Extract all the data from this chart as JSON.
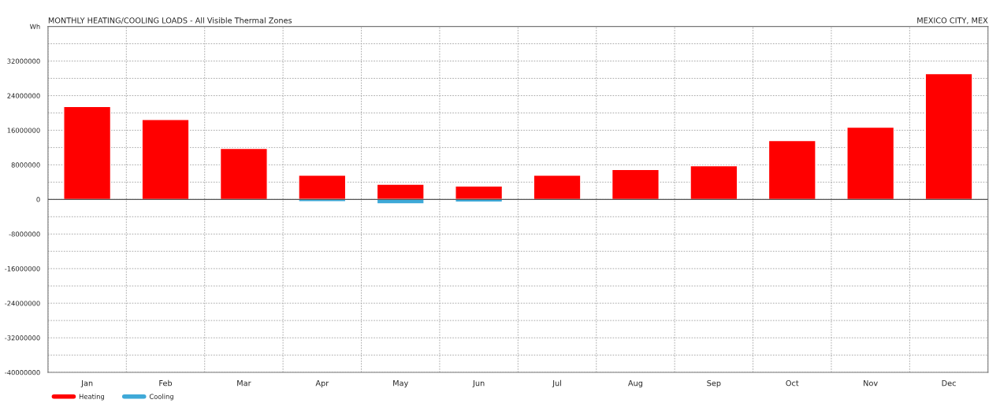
{
  "chart_data": {
    "type": "bar",
    "title": "MONTHLY HEATING/COOLING LOADS - All Visible Thermal Zones",
    "subtitle": "MEXICO CITY, MEX",
    "categories": [
      "Jan",
      "Feb",
      "Mar",
      "Apr",
      "May",
      "Jun",
      "Jul",
      "Aug",
      "Sep",
      "Oct",
      "Nov",
      "Dec"
    ],
    "series": [
      {
        "name": "Heating",
        "color": "#ff0000",
        "values": [
          21500000,
          18500000,
          11800000,
          5600000,
          3500000,
          3100000,
          5600000,
          6900000,
          7800000,
          13600000,
          16700000,
          29100000
        ]
      },
      {
        "name": "Cooling",
        "color": "#3fa9d8",
        "values": [
          null,
          null,
          null,
          -500000,
          -1000000,
          -600000,
          null,
          null,
          null,
          null,
          null,
          null
        ]
      }
    ],
    "ylim": [
      -40000000,
      40000000
    ],
    "yticks": [
      {
        "value": -40000000,
        "label": "-40000000"
      },
      {
        "value": -32000000,
        "label": "-32000000"
      },
      {
        "value": -24000000,
        "label": "-24000000"
      },
      {
        "value": -16000000,
        "label": "-16000000"
      },
      {
        "value": -8000000,
        "label": "-8000000"
      },
      0,
      8000000,
      16000000,
      24000000,
      32000000,
      {
        "value": 40000000,
        "label": "Wh"
      }
    ],
    "grid": true,
    "legend": "bottom left"
  }
}
